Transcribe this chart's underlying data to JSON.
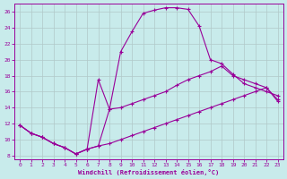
{
  "xlabel": "Windchill (Refroidissement éolien,°C)",
  "bg_color": "#c8ebeb",
  "line_color": "#990099",
  "grid_color": "#b0c8c8",
  "series1_x": [
    0,
    1,
    2,
    3,
    4,
    5,
    6,
    7,
    8,
    9,
    10,
    11,
    12,
    13,
    14,
    15,
    16,
    17,
    18,
    19,
    20,
    21,
    22,
    23
  ],
  "series1_y": [
    11.8,
    10.8,
    10.3,
    9.5,
    9.0,
    8.2,
    8.8,
    17.5,
    13.8,
    21.0,
    23.5,
    25.8,
    26.2,
    26.5,
    26.5,
    26.3,
    24.2,
    20.0,
    19.5,
    18.2,
    17.0,
    16.5,
    16.0,
    15.5
  ],
  "series2_x": [
    0,
    1,
    2,
    3,
    4,
    5,
    6,
    7,
    8,
    9,
    10,
    11,
    12,
    13,
    14,
    15,
    16,
    17,
    18,
    19,
    20,
    21,
    22,
    23
  ],
  "series2_y": [
    11.8,
    10.8,
    10.3,
    9.5,
    9.0,
    8.2,
    8.8,
    9.2,
    13.8,
    14.0,
    14.5,
    15.0,
    15.5,
    16.0,
    16.8,
    17.5,
    18.0,
    18.5,
    19.2,
    18.0,
    17.5,
    17.0,
    16.5,
    15.0
  ],
  "series3_x": [
    0,
    1,
    2,
    3,
    4,
    5,
    6,
    7,
    8,
    9,
    10,
    11,
    12,
    13,
    14,
    15,
    16,
    17,
    18,
    19,
    20,
    21,
    22,
    23
  ],
  "series3_y": [
    11.8,
    10.8,
    10.3,
    9.5,
    9.0,
    8.2,
    8.8,
    9.2,
    9.5,
    10.0,
    10.5,
    11.0,
    11.5,
    12.0,
    12.5,
    13.0,
    13.5,
    14.0,
    14.5,
    15.0,
    15.5,
    16.0,
    16.5,
    14.8
  ],
  "xlim": [
    -0.5,
    23.5
  ],
  "ylim": [
    7.5,
    27
  ],
  "yticks": [
    8,
    10,
    12,
    14,
    16,
    18,
    20,
    22,
    24,
    26
  ],
  "xticks": [
    0,
    1,
    2,
    3,
    4,
    5,
    6,
    7,
    8,
    9,
    10,
    11,
    12,
    13,
    14,
    15,
    16,
    17,
    18,
    19,
    20,
    21,
    22,
    23
  ]
}
